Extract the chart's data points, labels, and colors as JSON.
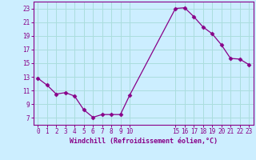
{
  "x": [
    0,
    1,
    2,
    3,
    4,
    5,
    6,
    7,
    8,
    9,
    10,
    15,
    16,
    17,
    18,
    19,
    20,
    21,
    22,
    23
  ],
  "y": [
    12.8,
    11.8,
    10.5,
    10.7,
    10.2,
    8.2,
    7.1,
    7.5,
    7.5,
    7.5,
    10.3,
    23.0,
    23.1,
    21.8,
    20.3,
    19.3,
    17.7,
    15.7,
    15.6,
    14.8
  ],
  "line_color": "#880088",
  "marker": "D",
  "marker_size": 2.5,
  "bg_color": "#cceeff",
  "grid_color": "#aadddd",
  "xlabel": "Windchill (Refroidissement éolien,°C)",
  "xlabel_color": "#880088",
  "tick_color": "#880088",
  "spine_color": "#880088",
  "ylim": [
    6,
    24
  ],
  "yticks": [
    7,
    9,
    11,
    13,
    15,
    17,
    19,
    21,
    23
  ],
  "xticks": [
    0,
    1,
    2,
    3,
    4,
    5,
    6,
    7,
    8,
    9,
    10,
    15,
    16,
    17,
    18,
    19,
    20,
    21,
    22,
    23
  ],
  "xlim": [
    -0.5,
    23.5
  ],
  "tick_fontsize": 5.5,
  "xlabel_fontsize": 6.0
}
